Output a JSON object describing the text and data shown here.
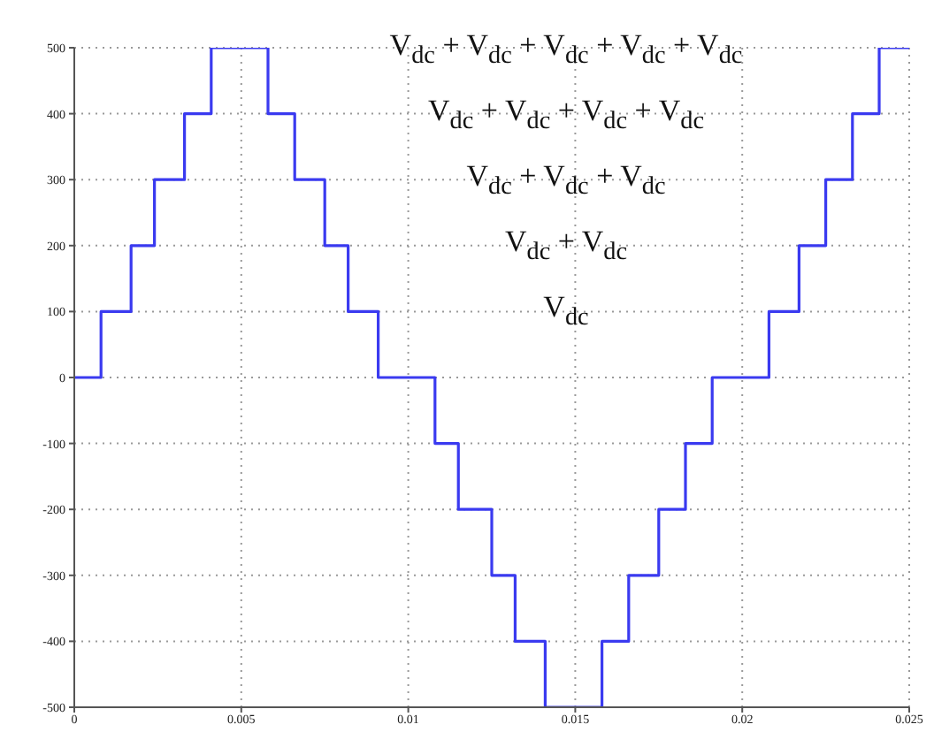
{
  "chart_data": {
    "type": "step",
    "x": [
      0,
      0.0008,
      0.0017,
      0.0024,
      0.0033,
      0.0041,
      0.0058,
      0.0066,
      0.0075,
      0.0082,
      0.0091,
      0.0108,
      0.0115,
      0.0125,
      0.0132,
      0.0141,
      0.0158,
      0.0166,
      0.0175,
      0.0183,
      0.0191,
      0.0208,
      0.0217,
      0.0225,
      0.0233,
      0.0241,
      0.025
    ],
    "series": [
      {
        "color": "#3a3af0",
        "values": [
          0,
          100,
          200,
          300,
          400,
          500,
          400,
          300,
          200,
          100,
          0,
          -100,
          -200,
          -300,
          -400,
          -500,
          -400,
          -300,
          -200,
          -100,
          0,
          100,
          200,
          300,
          400,
          500,
          500
        ]
      }
    ],
    "xlim": [
      0,
      0.025
    ],
    "xticks": [
      0,
      0.005,
      0.01,
      0.015,
      0.02,
      0.025
    ],
    "ylim": [
      -500,
      500
    ],
    "yticks": [
      -500,
      -400,
      -300,
      -200,
      -100,
      0,
      100,
      200,
      300,
      400,
      500
    ],
    "grid": true,
    "line_style": "solid",
    "marker": "none",
    "annotations": [
      "V$_{dc}$ + V$_{dc}$ + V$_{dc}$ + V$_{dc}$ + V$_{dc}$",
      "V$_{dc}$ + V$_{dc}$ + V$_{dc}$ + V$_{dc}$",
      "V$_{dc}$ + V$_{dc}$ + V$_{dc}$",
      "V$_{dc}$ + V$_{dc}$",
      "V$_{dc}$"
    ]
  }
}
